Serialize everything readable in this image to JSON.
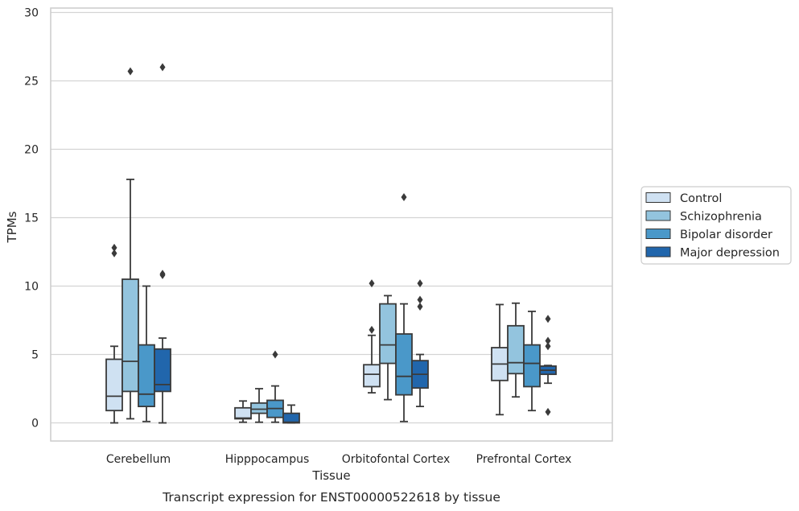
{
  "chart_data": {
    "type": "box",
    "title": "",
    "caption": "Transcript expression for ENST00000522618 by tissue",
    "xlabel": "Tissue",
    "ylabel": "TPMs",
    "ylim": [
      -1.3,
      30.3
    ],
    "yticks": [
      0,
      5,
      10,
      15,
      20,
      25,
      30
    ],
    "grid": "horizontal",
    "legend_position": "right",
    "categories": [
      "Cerebellum",
      "Hipppocampus",
      "Orbitofontal Cortex",
      "Prefrontal Cortex"
    ],
    "series": [
      {
        "name": "Control",
        "color": "#cfe1f2",
        "boxes": [
          {
            "whisker_low": 0.0,
            "q1": 0.9,
            "median": 1.95,
            "q3": 4.65,
            "whisker_high": 5.6,
            "outliers": [
              12.4,
              12.8
            ]
          },
          {
            "whisker_low": 0.05,
            "q1": 0.3,
            "median": 0.35,
            "q3": 1.1,
            "whisker_high": 1.6,
            "outliers": []
          },
          {
            "whisker_low": 2.2,
            "q1": 2.65,
            "median": 3.55,
            "q3": 4.25,
            "whisker_high": 6.4,
            "outliers": [
              6.8,
              10.2
            ]
          },
          {
            "whisker_low": 0.6,
            "q1": 3.1,
            "median": 4.3,
            "q3": 5.5,
            "whisker_high": 8.65,
            "outliers": []
          }
        ]
      },
      {
        "name": "Schizophrenia",
        "color": "#93c4de",
        "boxes": [
          {
            "whisker_low": 0.3,
            "q1": 2.3,
            "median": 4.5,
            "q3": 10.5,
            "whisker_high": 17.8,
            "outliers": [
              25.7
            ]
          },
          {
            "whisker_low": 0.05,
            "q1": 0.7,
            "median": 1.0,
            "q3": 1.45,
            "whisker_high": 2.5,
            "outliers": []
          },
          {
            "whisker_low": 1.7,
            "q1": 4.35,
            "median": 5.7,
            "q3": 8.7,
            "whisker_high": 9.3,
            "outliers": []
          },
          {
            "whisker_low": 1.9,
            "q1": 3.6,
            "median": 4.4,
            "q3": 7.1,
            "whisker_high": 8.75,
            "outliers": []
          }
        ]
      },
      {
        "name": "Bipolar disorder",
        "color": "#4a98c9",
        "boxes": [
          {
            "whisker_low": 0.1,
            "q1": 1.2,
            "median": 2.1,
            "q3": 5.7,
            "whisker_high": 10.0,
            "outliers": []
          },
          {
            "whisker_low": 0.05,
            "q1": 0.4,
            "median": 1.05,
            "q3": 1.65,
            "whisker_high": 2.7,
            "outliers": [
              5.0
            ]
          },
          {
            "whisker_low": 0.1,
            "q1": 2.05,
            "median": 3.4,
            "q3": 6.5,
            "whisker_high": 8.7,
            "outliers": [
              16.5
            ]
          },
          {
            "whisker_low": 0.9,
            "q1": 2.65,
            "median": 4.35,
            "q3": 5.7,
            "whisker_high": 8.15,
            "outliers": []
          }
        ]
      },
      {
        "name": "Major depression",
        "color": "#2166ac",
        "boxes": [
          {
            "whisker_low": 0.0,
            "q1": 2.3,
            "median": 2.8,
            "q3": 5.4,
            "whisker_high": 6.2,
            "outliers": [
              10.8,
              10.9,
              26.0
            ]
          },
          {
            "whisker_low": 0.0,
            "q1": 0.0,
            "median": 0.05,
            "q3": 0.7,
            "whisker_high": 1.3,
            "outliers": []
          },
          {
            "whisker_low": 1.2,
            "q1": 2.55,
            "median": 3.55,
            "q3": 4.55,
            "whisker_high": 5.0,
            "outliers": [
              8.5,
              9.0,
              10.2
            ]
          },
          {
            "whisker_low": 2.9,
            "q1": 3.55,
            "median": 3.85,
            "q3": 4.15,
            "whisker_high": 4.2,
            "outliers": [
              0.8,
              5.6,
              6.0,
              7.6
            ]
          }
        ]
      }
    ],
    "outlier_marker": "diamond",
    "line_color": "#3a3a3a",
    "grid_color": "#d4d4d4",
    "frame_color": "#cccccc"
  }
}
